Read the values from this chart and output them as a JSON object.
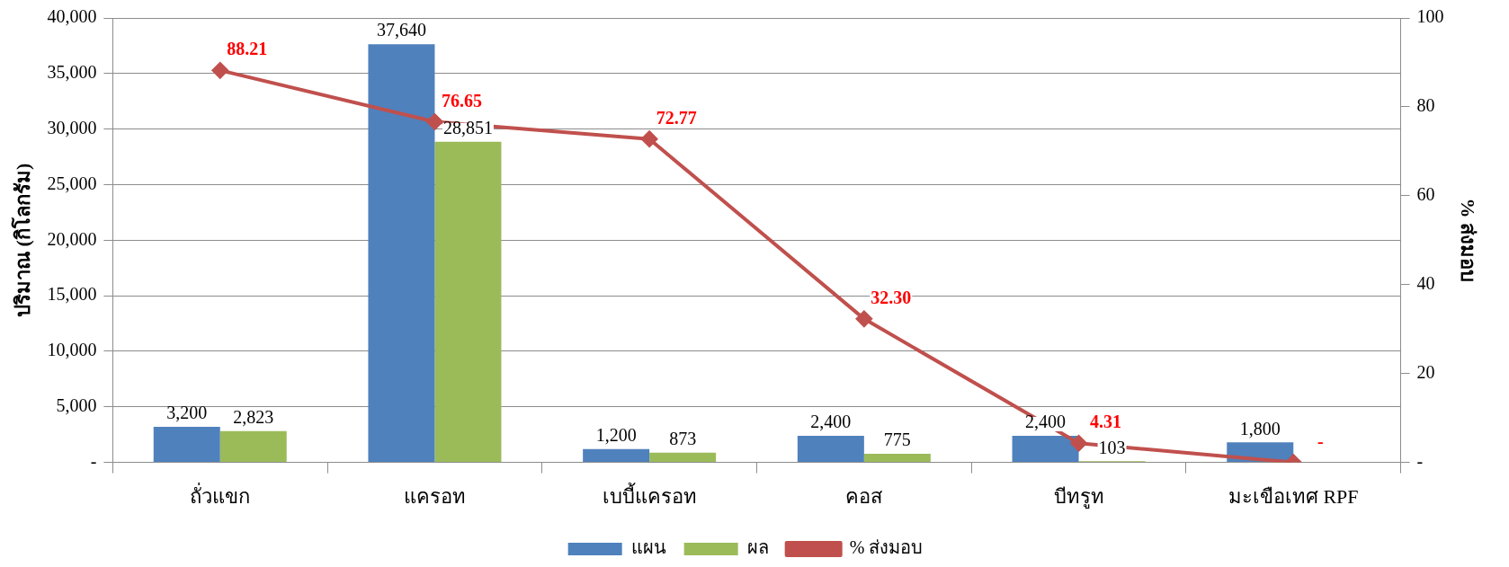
{
  "chart_data": {
    "type": "bar",
    "ylabel": "ปริมาณ (กิโลกรัม)",
    "y2label": "% ส่งมอบ",
    "categories": [
      "ถั่วแขก",
      "แครอท",
      "เบบี้แครอท",
      "คอส",
      "บีทรูท",
      "มะเขือเทศ RPF"
    ],
    "series": [
      {
        "name": "แผน",
        "color": "#4f81bd",
        "values": [
          3200,
          37640,
          1200,
          2400,
          2400,
          1800
        ],
        "value_labels": [
          "3,200",
          "37,640",
          "1,200",
          "2,400",
          "2,400",
          "1,800"
        ]
      },
      {
        "name": "ผล",
        "color": "#9bbb59",
        "values": [
          2823,
          28851,
          873,
          775,
          103,
          null
        ],
        "value_labels": [
          "2,823",
          "28,851",
          "873",
          "775",
          "103",
          null
        ]
      },
      {
        "name": "% ส่งมอบ",
        "type": "line",
        "axis": "y2",
        "color": "#c0504d",
        "marker": "diamond",
        "values": [
          88.21,
          76.65,
          72.77,
          32.3,
          4.31,
          0
        ],
        "value_labels": [
          "88.21",
          "76.65",
          "72.77",
          "32.30",
          "4.31",
          "-"
        ]
      }
    ],
    "ylim": [
      0,
      40000
    ],
    "yticks": [
      {
        "value": 0,
        "label": "-"
      },
      {
        "value": 5000,
        "label": "5,000"
      },
      {
        "value": 10000,
        "label": "10,000"
      },
      {
        "value": 15000,
        "label": "15,000"
      },
      {
        "value": 20000,
        "label": "20,000"
      },
      {
        "value": 25000,
        "label": "25,000"
      },
      {
        "value": 30000,
        "label": "30,000"
      },
      {
        "value": 35000,
        "label": "35,000"
      },
      {
        "value": 40000,
        "label": "40,000"
      }
    ],
    "y2lim": [
      0,
      100
    ],
    "y2ticks": [
      {
        "value": 0,
        "label": "-"
      },
      20,
      40,
      60,
      80,
      100
    ],
    "grid": "y",
    "legend": "bottom"
  }
}
